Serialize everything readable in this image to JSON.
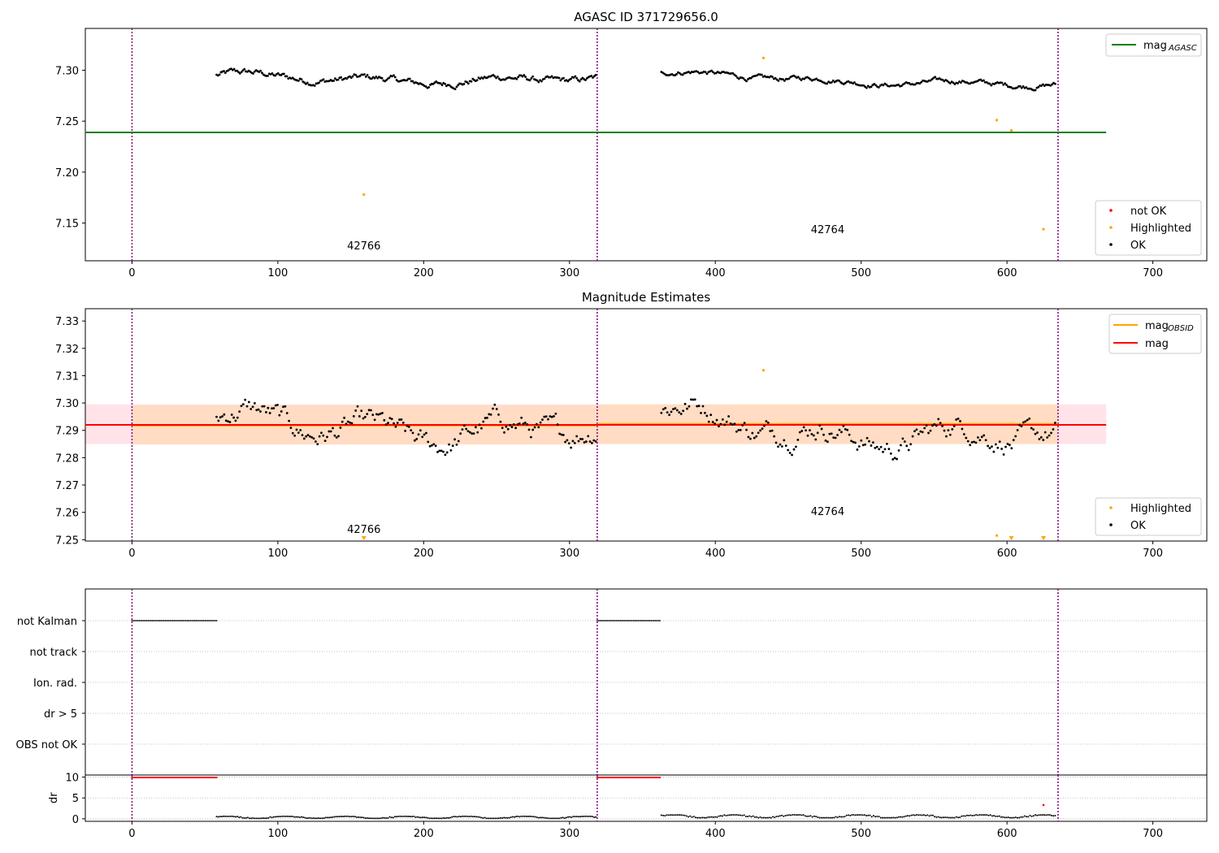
{
  "figure": {
    "panel1_title": "AGASC ID 371729656.0",
    "panel2_title": "Magnitude Estimates"
  },
  "colors": {
    "ok": "#000000",
    "highlighted": "#ffa500",
    "not_ok": "#ff0000",
    "agasc_line": "#008000",
    "mag_line": "#ff0000",
    "obsid_line": "#ffa500",
    "band_outer": "#ffc0cb",
    "band_inner": "#ffdab9",
    "obs_boundary": "#800080",
    "grid": "#b0b0b0"
  },
  "chart_data": [
    {
      "type": "scatter",
      "title": "AGASC ID 371729656.0",
      "xlim": [
        -32,
        737
      ],
      "ylim": [
        7.113,
        7.341
      ],
      "x_ticks": [
        0,
        100,
        200,
        300,
        400,
        500,
        600,
        700
      ],
      "y_ticks": [
        7.15,
        7.2,
        7.25,
        7.3
      ],
      "y_tick_labels": [
        "7.15",
        "7.20",
        "7.25",
        "7.30"
      ],
      "agasc_mag": 7.239,
      "agasc_line_x": [
        -32,
        668
      ],
      "obs_boundaries": [
        0,
        319,
        635
      ],
      "observations": [
        {
          "label": "42766",
          "x": 159,
          "y": 7.124
        },
        {
          "label": "42764",
          "x": 477,
          "y": 7.14
        }
      ],
      "series": [
        {
          "name": "OK",
          "segments": [
            {
              "x0": 58,
              "x1": 318,
              "base": 7.293,
              "amp": 0.008,
              "ramp": -0.004
            },
            {
              "x0": 363,
              "x1": 633,
              "base": 7.296,
              "amp": 0.006,
              "ramp": -0.012
            }
          ]
        },
        {
          "name": "Highlighted",
          "points": [
            [
              159,
              7.178
            ],
            [
              433,
              7.312
            ],
            [
              593,
              7.251
            ],
            [
              603,
              7.241
            ],
            [
              625,
              7.144
            ]
          ]
        },
        {
          "name": "not OK",
          "points": []
        }
      ],
      "legends": {
        "lines": [
          {
            "label": "mag",
            "subscript": "AGASC",
            "color": "#008000"
          }
        ],
        "markers": [
          {
            "label": "not OK",
            "color": "#ff0000"
          },
          {
            "label": "Highlighted",
            "color": "#ffa500"
          },
          {
            "label": "OK",
            "color": "#000000"
          }
        ]
      }
    },
    {
      "type": "scatter",
      "title": "Magnitude Estimates",
      "xlim": [
        -32,
        737
      ],
      "ylim": [
        7.2495,
        7.3345
      ],
      "x_ticks": [
        0,
        100,
        200,
        300,
        400,
        500,
        600,
        700
      ],
      "y_ticks": [
        7.25,
        7.26,
        7.27,
        7.28,
        7.29,
        7.3,
        7.31,
        7.32,
        7.33
      ],
      "y_tick_labels": [
        "7.25",
        "7.26",
        "7.27",
        "7.28",
        "7.29",
        "7.30",
        "7.31",
        "7.32",
        "7.33"
      ],
      "mag": 7.292,
      "mag_band": [
        7.285,
        7.2995
      ],
      "mag_obsid": [
        {
          "x0": 0,
          "x1": 319,
          "mag": 7.2918,
          "band": [
            7.2848,
            7.2992
          ]
        },
        {
          "x0": 319,
          "x1": 635,
          "mag": 7.2923,
          "band": [
            7.285,
            7.2995
          ]
        }
      ],
      "obs_boundaries": [
        0,
        319,
        635
      ],
      "observations": [
        {
          "label": "42766",
          "x": 159,
          "y": 7.2525
        },
        {
          "label": "42764",
          "x": 477,
          "y": 7.259
        }
      ],
      "series": [
        {
          "name": "OK",
          "segments": [
            {
              "x0": 58,
              "x1": 318,
              "base": 7.292,
              "amp": 0.01,
              "ramp": -0.004
            },
            {
              "x0": 363,
              "x1": 633,
              "base": 7.294,
              "amp": 0.01,
              "ramp": -0.008
            }
          ]
        },
        {
          "name": "Highlighted",
          "points": [
            [
              433,
              7.312
            ],
            [
              593,
              7.2515
            ]
          ],
          "clipped_below": [
            159,
            603,
            625
          ]
        }
      ],
      "legends": {
        "lines": [
          {
            "label": "mag",
            "subscript": "OBSID",
            "color": "#ffa500"
          },
          {
            "label": "mag",
            "subscript": "",
            "color": "#ff0000"
          }
        ],
        "markers": [
          {
            "label": "Highlighted",
            "color": "#ffa500"
          },
          {
            "label": "OK",
            "color": "#000000"
          }
        ]
      }
    },
    {
      "type": "scatter",
      "title": "",
      "xlim": [
        -32,
        737
      ],
      "flag_rows": [
        "not Kalman",
        "not track",
        "Ion. rad.",
        "dr > 5",
        "OBS not OK"
      ],
      "flag_points": {
        "not Kalman": [
          [
            0,
            58
          ],
          [
            319,
            362
          ]
        ],
        "not track": [],
        "Ion. rad.": [],
        "dr > 5": [],
        "OBS not OK": []
      },
      "obs_boundaries": [
        0,
        319,
        635
      ]
    },
    {
      "type": "scatter",
      "title": "",
      "xlim": [
        -32,
        737
      ],
      "ylim": [
        -0.6,
        10.5
      ],
      "ylabel": "dr",
      "x_ticks": [
        0,
        100,
        200,
        300,
        400,
        500,
        600,
        700
      ],
      "y_ticks": [
        0,
        5,
        10
      ],
      "y_tick_labels": [
        "0",
        "5",
        "10"
      ],
      "not_ok_ranges": [
        [
          0,
          58,
          9.9
        ],
        [
          319,
          362,
          9.9
        ]
      ],
      "not_ok_points": [
        [
          625,
          3.3
        ]
      ],
      "ok_segments": [
        {
          "x0": 58,
          "x1": 318,
          "base": 0.35,
          "amp": 0.25
        },
        {
          "x0": 363,
          "x1": 633,
          "base": 0.6,
          "amp": 0.35
        }
      ],
      "obs_boundaries": [
        0,
        319,
        635
      ]
    }
  ]
}
